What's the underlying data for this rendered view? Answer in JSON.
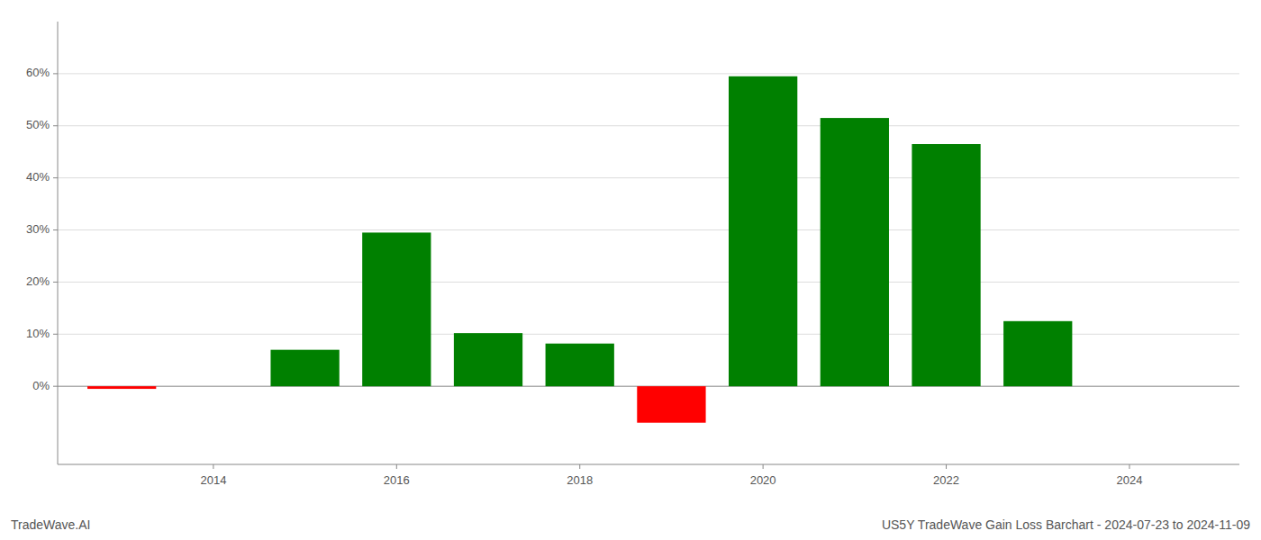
{
  "chart_data": {
    "type": "bar",
    "title": "US5Y TradeWave Gain Loss Barchart - 2024-07-23 to 2024-11-09",
    "annotations": [
      "TradeWave.AI"
    ],
    "x": [
      2013,
      2015,
      2016,
      2017,
      2018,
      2019,
      2020,
      2021,
      2022,
      2023
    ],
    "values": [
      -0.5,
      7.0,
      29.5,
      10.2,
      8.2,
      -7.0,
      59.5,
      51.5,
      46.5,
      12.5
    ],
    "colors": [
      "#ff0000",
      "#008000",
      "#008000",
      "#008000",
      "#008000",
      "#ff0000",
      "#008000",
      "#008000",
      "#008000",
      "#008000"
    ],
    "xlim": [
      2012.3,
      2025.2
    ],
    "xticks": [
      2014,
      2016,
      2018,
      2020,
      2022,
      2024
    ],
    "ylim": [
      -15,
      70
    ],
    "yticks": [
      {
        "value": 0,
        "label": "0%"
      },
      {
        "value": 10,
        "label": "10%"
      },
      {
        "value": 20,
        "label": "20%"
      },
      {
        "value": 30,
        "label": "30%"
      },
      {
        "value": 40,
        "label": "40%"
      },
      {
        "value": 50,
        "label": "50%"
      },
      {
        "value": 60,
        "label": "60%"
      }
    ],
    "grid": true
  }
}
